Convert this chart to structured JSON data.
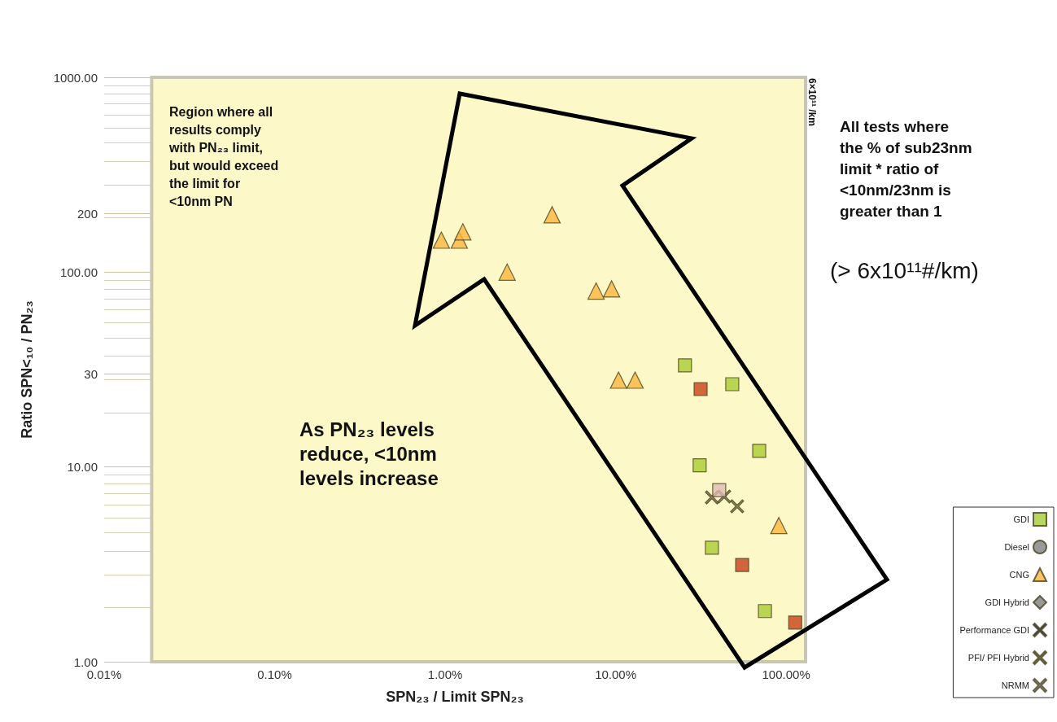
{
  "chart_data": {
    "type": "scatter",
    "xlabel": "SPN₂₃ / Limit SPN₂₃",
    "ylabel": "Ratio SPN<₁₀ / PN₂₃",
    "log": "xy",
    "xlim": [
      0.01,
      130
    ],
    "xticks": [
      {
        "value": 0.01,
        "label": "0.01%"
      },
      {
        "value": 0.1,
        "label": "0.10%"
      },
      {
        "value": 1,
        "label": "1.00%"
      },
      {
        "value": 10,
        "label": "10.00%"
      },
      {
        "value": 100,
        "label": "100.00%"
      }
    ],
    "ylim": [
      1,
      1000
    ],
    "yticks": [
      {
        "value": 1,
        "label": "1.00"
      },
      {
        "value": 10,
        "label": "10.00"
      },
      30,
      {
        "value": 100,
        "label": "100.00"
      },
      200,
      {
        "value": 1000,
        "label": "1000.00"
      }
    ],
    "grid": "y",
    "legend": "bottom right",
    "bands": [
      {
        "axis": "x",
        "from": 0.019,
        "to": 130,
        "color": "#fdf8c8"
      }
    ],
    "series": [
      {
        "name": "GDI",
        "color": "#a8cc34",
        "marker": "square",
        "x": [
          25.5,
          48.3,
          69.5,
          31.1,
          36.7,
          75.1
        ],
        "values": [
          33.2,
          26.6,
          12.1,
          10.2,
          3.85,
          1.82
        ]
      },
      {
        "name": "Diesel",
        "color": "#808080",
        "marker": "circle"
      },
      {
        "name": "CNG",
        "color": "#fbb540",
        "marker": "triangle",
        "x": [
          0.95,
          1.21,
          1.27,
          2.31,
          4.24,
          7.68,
          9.47,
          10.4,
          13.0,
          90.6
        ],
        "values": [
          146,
          146,
          161,
          100,
          197,
          80,
          82,
          27.9,
          27.9,
          5.0
        ]
      },
      {
        "name": "GDI Hybrid",
        "color": "#808080",
        "marker": "diamond"
      },
      {
        "name": "Performance GDI",
        "color": "#0d2240",
        "marker": "cross"
      },
      {
        "name": "PFI/ PFI Hybrid",
        "color": "#767044",
        "marker": "cross",
        "x": [
          36.7,
          43.3,
          51.6
        ],
        "values": [
          6.98,
          7.05,
          6.28
        ]
      },
      {
        "name": "NRMM",
        "color": "#a0a0a0",
        "marker": "cross"
      },
      {
        "color": "#c8401a",
        "marker": "square",
        "x": [
          31.5,
          55.2,
          113
        ],
        "values": [
          25.1,
          3.14,
          1.59
        ]
      },
      {
        "color": "#e0bcb4",
        "marker": "square",
        "x": [
          40.5
        ],
        "values": [
          7.6
        ]
      }
    ],
    "annotations": [
      "Region where all results comply with PN₂₃ limit, but would exceed the limit for <10nm PN",
      "As PN₂₃ levels reduce, <10nm levels increase",
      "All tests where the % of sub23nm limit * ratio of <10nm/23nm is greater than 1",
      "(> 6x10¹¹#/km)",
      "6×10¹¹ /km"
    ]
  }
}
